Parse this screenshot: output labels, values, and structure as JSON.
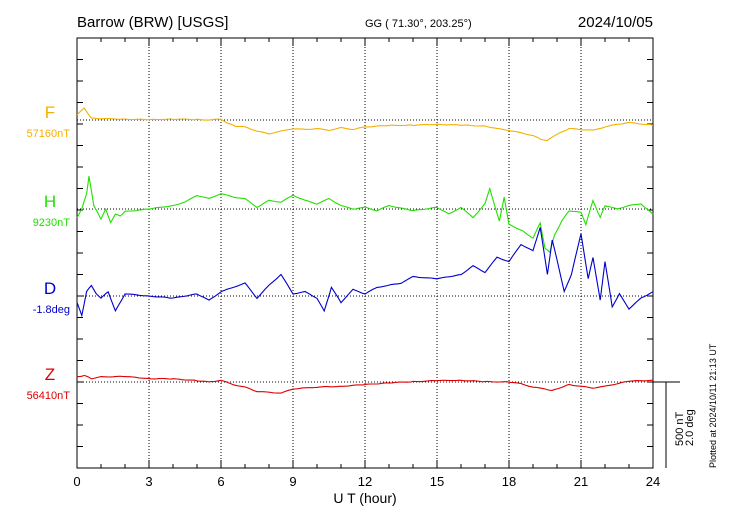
{
  "header": {
    "station": "Barrow (BRW)  [USGS]",
    "coords": "GG ( 71.30°, 203.25°)",
    "date": "2024/10/05"
  },
  "plotted_note": "Plotted at 2024/10/11 21:13 UT",
  "scale_label_nt": "500 nT",
  "scale_label_deg": "2.0 deg",
  "chart_data": {
    "type": "line",
    "xlabel": "U T (hour)",
    "xlim": [
      0,
      24
    ],
    "xticks": [
      0,
      3,
      6,
      9,
      12,
      15,
      18,
      21,
      24
    ],
    "grid": "dotted vertical at 3-hour intervals",
    "series": [
      {
        "name": "F",
        "baseline_label": "57160nT",
        "color": "#f5b000",
        "unit": "nT",
        "scale_per_gridrow": 500,
        "baseline": 57160,
        "x": [
          0,
          0.3,
          0.6,
          1,
          2,
          3,
          4,
          5,
          5.5,
          6,
          6.3,
          6.6,
          7,
          7.5,
          8,
          8.5,
          9,
          9.5,
          10,
          10.5,
          11,
          11.5,
          12,
          13,
          14,
          15,
          16,
          17,
          17.5,
          18,
          18.5,
          19,
          19.3,
          19.6,
          19.9,
          20.2,
          20.5,
          21,
          21.5,
          22,
          22.5,
          23,
          24
        ],
        "y": [
          57190,
          57230,
          57170,
          57168,
          57165,
          57162,
          57165,
          57163,
          57160,
          57165,
          57140,
          57125,
          57120,
          57095,
          57080,
          57095,
          57110,
          57105,
          57110,
          57100,
          57115,
          57105,
          57120,
          57128,
          57130,
          57135,
          57130,
          57125,
          57110,
          57100,
          57085,
          57070,
          57050,
          57040,
          57070,
          57090,
          57110,
          57105,
          57100,
          57120,
          57135,
          57145,
          57130
        ]
      },
      {
        "name": "H",
        "baseline_label": "9230nT",
        "color": "#22e000",
        "unit": "nT",
        "scale_per_gridrow": 500,
        "baseline": 9230,
        "x": [
          0,
          0.2,
          0.4,
          0.5,
          0.7,
          0.9,
          1,
          1.2,
          1.4,
          1.6,
          1.8,
          2,
          3,
          4,
          4.5,
          5,
          5.5,
          6,
          6.5,
          7,
          7.5,
          8,
          8.5,
          9,
          9.5,
          10,
          10.5,
          11,
          11.5,
          12,
          12.5,
          13,
          14,
          15,
          15.5,
          16,
          16.5,
          17,
          17.2,
          17.4,
          17.6,
          17.8,
          18,
          18.3,
          18.6,
          19,
          19.3,
          19.5,
          19.7,
          19.9,
          20.2,
          20.5,
          21,
          21.2,
          21.5,
          21.8,
          22,
          22.5,
          23,
          23.5,
          24
        ],
        "y": [
          9180,
          9230,
          9320,
          9420,
          9250,
          9200,
          9170,
          9230,
          9150,
          9200,
          9190,
          9215,
          9230,
          9250,
          9270,
          9310,
          9290,
          9320,
          9300,
          9290,
          9240,
          9280,
          9270,
          9310,
          9280,
          9260,
          9290,
          9250,
          9230,
          9240,
          9220,
          9250,
          9220,
          9240,
          9200,
          9240,
          9180,
          9260,
          9350,
          9250,
          9160,
          9300,
          9140,
          9120,
          9100,
          9060,
          9150,
          9000,
          8980,
          9080,
          9160,
          9220,
          9210,
          9140,
          9280,
          9180,
          9250,
          9230,
          9250,
          9260,
          9200
        ]
      },
      {
        "name": "D",
        "baseline_label": "-1.8deg",
        "color": "#0000cc",
        "unit": "deg",
        "scale_per_gridrow": 2.0,
        "baseline": -1.8,
        "x": [
          0,
          0.2,
          0.4,
          0.6,
          0.8,
          1,
          1.3,
          1.6,
          2,
          3,
          4,
          5,
          5.5,
          6,
          6.5,
          7,
          7.5,
          8,
          8.5,
          9,
          9.5,
          10,
          10.3,
          10.6,
          11,
          11.5,
          12,
          12.5,
          13,
          13.5,
          14,
          15,
          16,
          16.5,
          17,
          17.5,
          18,
          18.5,
          19,
          19.3,
          19.6,
          19.8,
          20,
          20.3,
          20.6,
          21,
          21.3,
          21.5,
          21.8,
          22,
          22.3,
          22.6,
          23,
          23.5,
          24
        ],
        "y": [
          -1.95,
          -2.25,
          -1.7,
          -1.55,
          -1.75,
          -1.85,
          -1.7,
          -2.15,
          -1.75,
          -1.8,
          -1.85,
          -1.75,
          -1.9,
          -1.7,
          -1.6,
          -1.5,
          -1.85,
          -1.55,
          -1.3,
          -1.75,
          -1.7,
          -1.85,
          -2.15,
          -1.6,
          -1.95,
          -1.65,
          -1.75,
          -1.6,
          -1.55,
          -1.5,
          -1.35,
          -1.4,
          -1.3,
          -1.1,
          -1.25,
          -0.9,
          -1.0,
          -0.6,
          -0.75,
          -0.2,
          -1.3,
          -0.5,
          -0.95,
          -1.7,
          -1.3,
          -0.35,
          -1.4,
          -0.9,
          -1.9,
          -1.0,
          -2.05,
          -1.75,
          -2.1,
          -1.85,
          -1.7
        ]
      },
      {
        "name": "Z",
        "baseline_label": "56410nT",
        "color": "#dd0000",
        "unit": "nT",
        "scale_per_gridrow": 500,
        "baseline": 56410,
        "x": [
          0,
          0.3,
          0.6,
          1,
          2,
          3,
          4,
          5,
          5.5,
          6,
          6.5,
          7,
          7.5,
          8,
          8.5,
          9,
          9.5,
          10,
          11,
          12,
          13,
          14,
          15,
          16,
          17,
          18,
          18.5,
          19,
          19.5,
          19.8,
          20.2,
          20.5,
          21,
          21.5,
          22,
          23,
          24
        ],
        "y": [
          56440,
          56448,
          56430,
          56440,
          56442,
          56430,
          56428,
          56418,
          56410,
          56420,
          56395,
          56380,
          56355,
          56350,
          56345,
          56370,
          56375,
          56380,
          56385,
          56395,
          56405,
          56412,
          56418,
          56420,
          56412,
          56410,
          56400,
          56380,
          56370,
          56360,
          56380,
          56395,
          56385,
          56375,
          56385,
          56415,
          56420
        ]
      }
    ]
  }
}
